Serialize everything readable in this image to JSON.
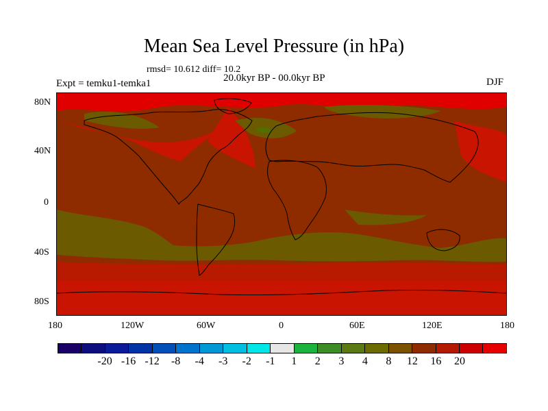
{
  "header": {
    "title": "Mean Sea Level Pressure (in hPa)",
    "stats": "rmsd= 10.612 diff= 10.2",
    "experiment": "Expt = temku1-temka1",
    "period": "20.0kyr BP - 00.0kyr BP",
    "season": "DJF"
  },
  "map": {
    "y_ticks": [
      "80N",
      "40N",
      "0",
      "40S",
      "80S"
    ],
    "x_ticks": [
      "180",
      "120W",
      "60W",
      "0",
      "60E",
      "120E",
      "180"
    ],
    "lat_range": [
      -90,
      90
    ],
    "lon_range": [
      -180,
      180
    ],
    "colors": {
      "base": "#8e2c00",
      "high": "#e00000",
      "mid_high": "#b81a00",
      "low": "#6b5a00",
      "lower": "#4f7000",
      "coast": "#000000"
    }
  },
  "colorbar": {
    "colors": [
      "#1a0066",
      "#0d0d80",
      "#0a1a99",
      "#0033a6",
      "#0050b8",
      "#0073cc",
      "#0099d6",
      "#00bfe0",
      "#00e6e6",
      "#e6e6e6",
      "#1ab33d",
      "#3d8c26",
      "#5c7a14",
      "#6b6b00",
      "#7a5200",
      "#8e2c00",
      "#b31a00",
      "#cc0000",
      "#e60000"
    ],
    "labels": [
      "-20",
      "-16",
      "-12",
      "-8",
      "-4",
      "-3",
      "-2",
      "-1",
      "1",
      "2",
      "3",
      "4",
      "8",
      "12",
      "16",
      "20"
    ]
  }
}
